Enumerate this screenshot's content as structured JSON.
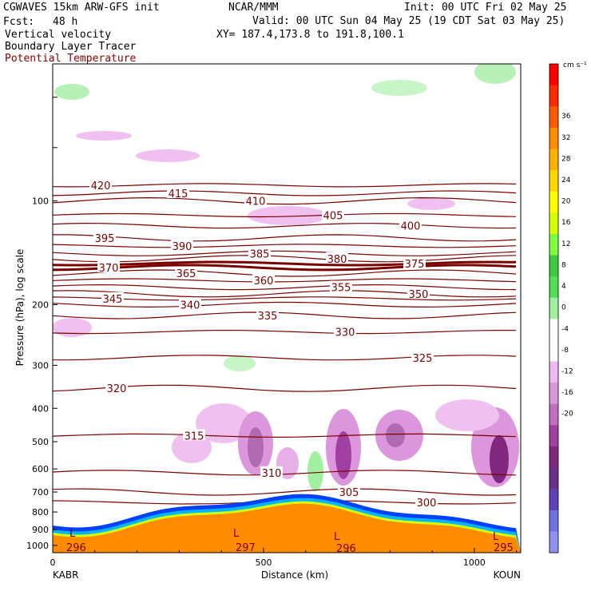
{
  "header": {
    "title": "CGWAVES 15km ARW-GFS init",
    "forecast_label": "Fcst:",
    "forecast_value": "48 h",
    "field1": "Vertical velocity",
    "field2": "Boundary Layer Tracer",
    "field3": "Potential Temperature",
    "center": "NCAR/MMM",
    "init": "Init: 00 UTC Fri 02 May 25",
    "valid": "Valid: 00 UTC Sun 04 May 25 (19 CDT Sat 03 May 25)",
    "xy": "XY= 187.4,173.8 to 191.8,100.1",
    "field3_color": "#8b0000"
  },
  "chart_data": {
    "type": "cross-section",
    "xlabel": "Distance (km)",
    "ylabel": "Pressure (hPa), log scale",
    "xlim": [
      0,
      1110
    ],
    "ylim_hPa": [
      1050,
      40
    ],
    "y_log": true,
    "x_ticks": [
      0,
      500,
      1000
    ],
    "y_ticks": [
      100,
      200,
      300,
      400,
      500,
      600,
      700,
      800,
      900,
      1000
    ],
    "left_station": "KABR",
    "right_station": "KOUN",
    "colorbar": {
      "units": "cm s⁻¹",
      "levels": [
        "36",
        "32",
        "28",
        "24",
        "20",
        "16",
        "12",
        "8",
        "4",
        "0",
        "-4",
        "-8",
        "-12",
        "-16",
        "-20"
      ],
      "colors": [
        "#ff0000",
        "#ff2a00",
        "#ff5a00",
        "#ff8c00",
        "#ffb000",
        "#ffd700",
        "#ffff00",
        "#d4ff00",
        "#7cff3c",
        "#3ccc3c",
        "#50e050",
        "#a0f0a0",
        "#ffffff",
        "#ffffff",
        "#f0b8f0",
        "#dc96dc",
        "#c070c0",
        "#a040a0",
        "#802880",
        "#6a2f8a",
        "#6040b8",
        "#7070e0",
        "#9090f0"
      ]
    },
    "theta_contours": [
      {
        "label": "420",
        "p": 90
      },
      {
        "label": "415",
        "p": 95
      },
      {
        "label": "410",
        "p": 100
      },
      {
        "label": "405",
        "p": 110
      },
      {
        "label": "400",
        "p": 118
      },
      {
        "label": "395",
        "p": 128
      },
      {
        "label": "390",
        "p": 135
      },
      {
        "label": "385",
        "p": 142
      },
      {
        "label": "380",
        "p": 147
      },
      {
        "label": "375",
        "p": 152
      },
      {
        "label": "370",
        "p": 156
      },
      {
        "label": "365",
        "p": 162
      },
      {
        "label": "360",
        "p": 170
      },
      {
        "label": "355",
        "p": 178
      },
      {
        "label": "350",
        "p": 186
      },
      {
        "label": "345",
        "p": 192
      },
      {
        "label": "340",
        "p": 200
      },
      {
        "label": "335",
        "p": 215
      },
      {
        "label": "330",
        "p": 240
      },
      {
        "label": "325",
        "p": 285
      },
      {
        "label": "320",
        "p": 350
      },
      {
        "label": "315",
        "p": 480
      },
      {
        "label": "310",
        "p": 615
      },
      {
        "label": "305",
        "p": 700
      },
      {
        "label": "300",
        "p": 750
      },
      {
        "label": "296",
        "p": 1000
      },
      {
        "label": "297",
        "p": 990
      },
      {
        "label": "295",
        "p": 1000
      }
    ],
    "low_markers": [
      "L",
      "L",
      "L",
      "L"
    ]
  }
}
